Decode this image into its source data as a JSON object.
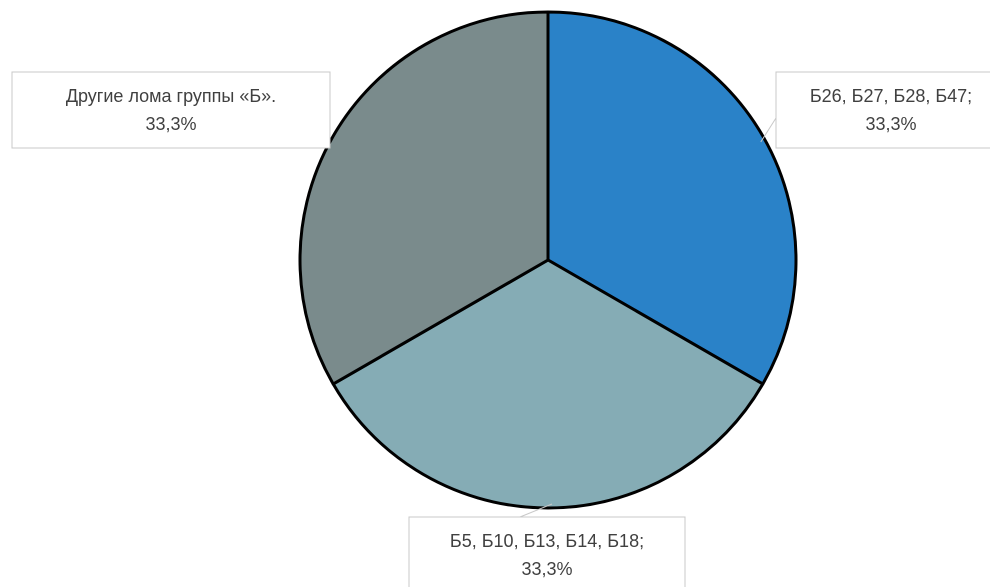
{
  "chart_data": {
    "type": "pie",
    "title": "",
    "slices": [
      {
        "category": "Б26, Б27, Б28, Б47;",
        "percent_label": "33,3%",
        "value": 33.3,
        "color": "#2a82c8"
      },
      {
        "category": "Б5, Б10, Б13, Б14, Б18;",
        "percent_label": "33,3%",
        "value": 33.3,
        "color": "#85acb5"
      },
      {
        "category": "Другие лома группы «Б».",
        "percent_label": "33,3%",
        "value": 33.3,
        "color": "#7a8b8c"
      }
    ],
    "legend": "none",
    "data_labels": "outside with leader lines"
  }
}
